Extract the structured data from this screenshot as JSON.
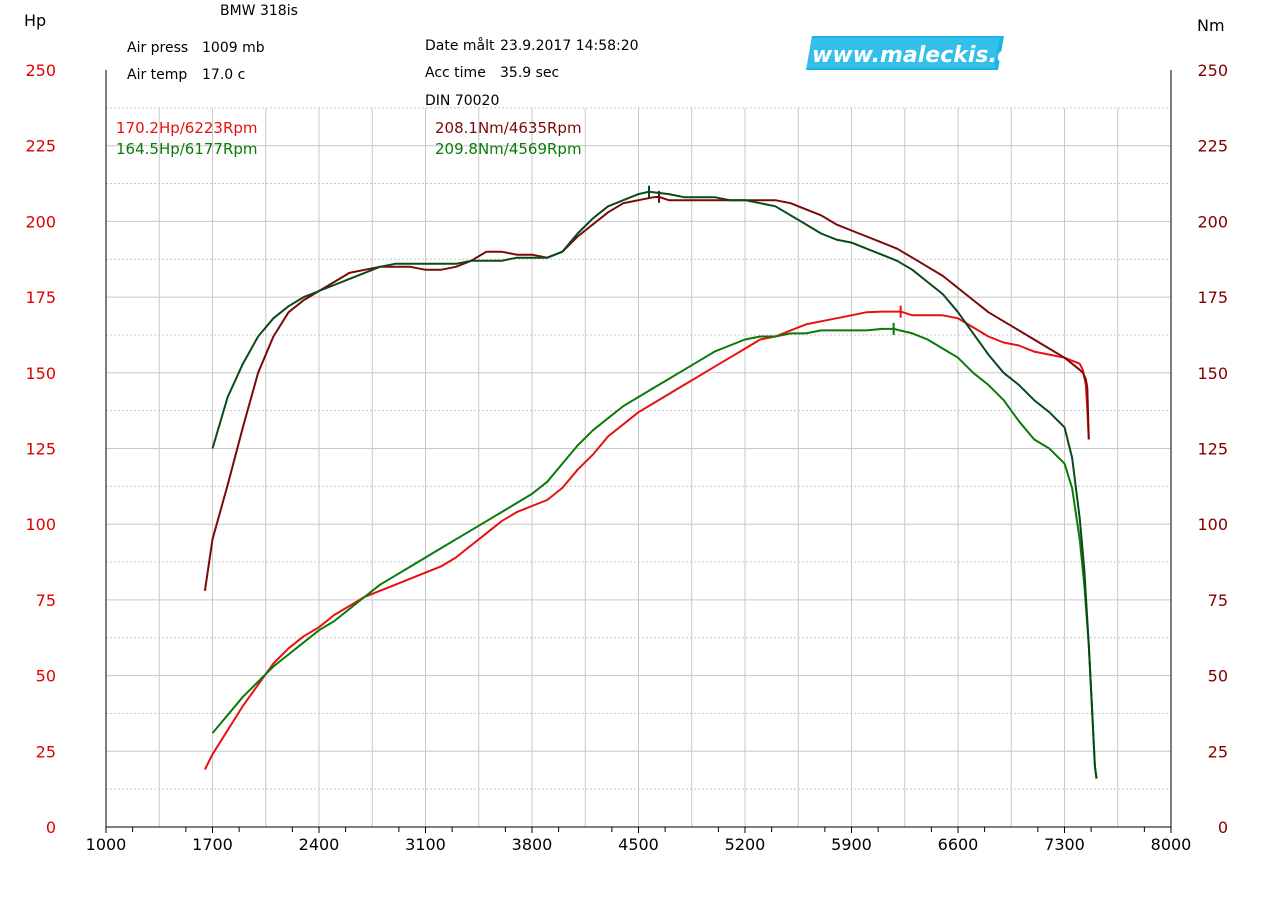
{
  "header": {
    "title": "BMW 318is",
    "air_press_label": "Air press",
    "air_press_value": "1009 mb",
    "air_temp_label": "Air temp",
    "air_temp_value": "17.0 c",
    "date_label": "Date målt",
    "date_value": "23.9.2017 14:58:20",
    "acc_label": "Acc time",
    "acc_value": "35.9 sec",
    "din": "DIN 70020",
    "logo": "www.maleckis.com"
  },
  "colors": {
    "hp_run1": "#e81010",
    "nm_run1": "#7a0a0a",
    "hp_run2": "#0a7a0a",
    "nm_run2": "#0a4a1a",
    "left_axis": "#e00000",
    "right_axis": "#800000",
    "logo_bg": "#19b5e8"
  },
  "chart_data": {
    "type": "line",
    "xlabel": "",
    "left_unit": "Hp",
    "right_unit": "Nm",
    "xlim": [
      1000,
      8000
    ],
    "ylim": [
      0,
      250
    ],
    "x_ticks": [
      "1000",
      "1700",
      "2400",
      "3100",
      "3800",
      "4500",
      "5200",
      "5900",
      "6600",
      "7300",
      "8000"
    ],
    "y_ticks": [
      "0",
      "25",
      "50",
      "75",
      "100",
      "125",
      "150",
      "175",
      "200",
      "225",
      "250"
    ],
    "peaks": {
      "run1_hp": "170.2Hp/6223Rpm",
      "run1_nm": "208.1Nm/4635Rpm",
      "run2_hp": "164.5Hp/6177Rpm",
      "run2_nm": "209.8Nm/4569Rpm"
    },
    "series": [
      {
        "key": "hp_run1",
        "axis": "hp",
        "peak": [
          6223,
          170.2
        ],
        "x": [
          1650,
          1700,
          1800,
          1900,
          2000,
          2100,
          2200,
          2300,
          2400,
          2500,
          2600,
          2700,
          2800,
          2900,
          3000,
          3100,
          3200,
          3300,
          3400,
          3500,
          3600,
          3700,
          3800,
          3900,
          4000,
          4100,
          4200,
          4300,
          4400,
          4500,
          4600,
          4700,
          4800,
          4900,
          5000,
          5100,
          5200,
          5300,
          5400,
          5500,
          5600,
          5700,
          5800,
          5900,
          6000,
          6100,
          6200,
          6223,
          6300,
          6400,
          6500,
          6600,
          6700,
          6800,
          6900,
          7000,
          7100,
          7200,
          7300,
          7350,
          7400,
          7420,
          7440,
          7450,
          7460
        ],
        "y": [
          19,
          24,
          32,
          40,
          47,
          54,
          59,
          63,
          66,
          70,
          73,
          76,
          78,
          80,
          82,
          84,
          86,
          89,
          93,
          97,
          101,
          104,
          106,
          108,
          112,
          118,
          123,
          129,
          133,
          137,
          140,
          143,
          146,
          149,
          152,
          155,
          158,
          161,
          162,
          164,
          166,
          167,
          168,
          169,
          170,
          170.2,
          170.2,
          170.2,
          169,
          169,
          169,
          168,
          165,
          162,
          160,
          159,
          157,
          156,
          155,
          154,
          153,
          151,
          146,
          138,
          128
        ]
      },
      {
        "key": "hp_run2",
        "axis": "hp",
        "peak": [
          6177,
          164.5
        ],
        "x": [
          1700,
          1800,
          1900,
          2000,
          2100,
          2200,
          2300,
          2400,
          2500,
          2600,
          2700,
          2800,
          2900,
          3000,
          3100,
          3200,
          3300,
          3400,
          3500,
          3600,
          3700,
          3800,
          3900,
          4000,
          4100,
          4200,
          4300,
          4400,
          4500,
          4600,
          4700,
          4800,
          4900,
          5000,
          5100,
          5200,
          5300,
          5400,
          5500,
          5600,
          5700,
          5800,
          5900,
          6000,
          6100,
          6177,
          6300,
          6400,
          6500,
          6600,
          6700,
          6800,
          6900,
          7000,
          7100,
          7200,
          7300,
          7350,
          7400,
          7430,
          7460,
          7480,
          7500,
          7510
        ],
        "y": [
          31,
          37,
          43,
          48,
          53,
          57,
          61,
          65,
          68,
          72,
          76,
          80,
          83,
          86,
          89,
          92,
          95,
          98,
          101,
          104,
          107,
          110,
          114,
          120,
          126,
          131,
          135,
          139,
          142,
          145,
          148,
          151,
          154,
          157,
          159,
          161,
          162,
          162,
          163,
          163,
          164,
          164,
          164,
          164,
          164.5,
          164.5,
          163,
          161,
          158,
          155,
          150,
          146,
          141,
          134,
          128,
          125,
          120,
          112,
          95,
          80,
          60,
          40,
          20,
          16
        ]
      },
      {
        "key": "nm_run1",
        "axis": "nm",
        "peak": [
          4635,
          208.1
        ],
        "x": [
          1650,
          1700,
          1800,
          1900,
          2000,
          2100,
          2200,
          2300,
          2400,
          2500,
          2600,
          2700,
          2800,
          2900,
          3000,
          3100,
          3200,
          3300,
          3400,
          3500,
          3600,
          3700,
          3800,
          3900,
          4000,
          4100,
          4200,
          4300,
          4400,
          4500,
          4600,
          4635,
          4700,
          4800,
          4900,
          5000,
          5100,
          5200,
          5300,
          5400,
          5500,
          5600,
          5700,
          5800,
          5900,
          6000,
          6100,
          6200,
          6300,
          6400,
          6500,
          6600,
          6700,
          6800,
          6900,
          7000,
          7100,
          7200,
          7300,
          7350,
          7400,
          7420,
          7440,
          7450,
          7460
        ],
        "y": [
          78,
          95,
          113,
          132,
          150,
          162,
          170,
          174,
          177,
          180,
          183,
          184,
          185,
          185,
          185,
          184,
          184,
          185,
          187,
          190,
          190,
          189,
          189,
          188,
          190,
          195,
          199,
          203,
          206,
          207,
          208,
          208.1,
          207,
          207,
          207,
          207,
          207,
          207,
          207,
          207,
          206,
          204,
          202,
          199,
          197,
          195,
          193,
          191,
          188,
          185,
          182,
          178,
          174,
          170,
          167,
          164,
          161,
          158,
          155,
          153,
          151,
          150,
          148,
          145,
          128
        ]
      },
      {
        "key": "nm_run2",
        "axis": "nm",
        "peak": [
          4569,
          209.8
        ],
        "x": [
          1700,
          1800,
          1900,
          2000,
          2100,
          2200,
          2300,
          2400,
          2500,
          2600,
          2700,
          2800,
          2900,
          3000,
          3100,
          3200,
          3300,
          3400,
          3500,
          3600,
          3700,
          3800,
          3900,
          4000,
          4100,
          4200,
          4300,
          4400,
          4500,
          4569,
          4700,
          4800,
          4900,
          5000,
          5100,
          5200,
          5300,
          5400,
          5500,
          5600,
          5700,
          5800,
          5900,
          6000,
          6100,
          6200,
          6300,
          6400,
          6500,
          6600,
          6700,
          6800,
          6900,
          7000,
          7100,
          7200,
          7300,
          7350,
          7400,
          7430,
          7460,
          7480,
          7500,
          7510
        ],
        "y": [
          125,
          142,
          153,
          162,
          168,
          172,
          175,
          177,
          179,
          181,
          183,
          185,
          186,
          186,
          186,
          186,
          186,
          187,
          187,
          187,
          188,
          188,
          188,
          190,
          196,
          201,
          205,
          207,
          209,
          209.8,
          209,
          208,
          208,
          208,
          207,
          207,
          206,
          205,
          202,
          199,
          196,
          194,
          193,
          191,
          189,
          187,
          184,
          180,
          176,
          170,
          163,
          156,
          150,
          146,
          141,
          137,
          132,
          122,
          102,
          85,
          60,
          40,
          20,
          16
        ]
      }
    ]
  }
}
